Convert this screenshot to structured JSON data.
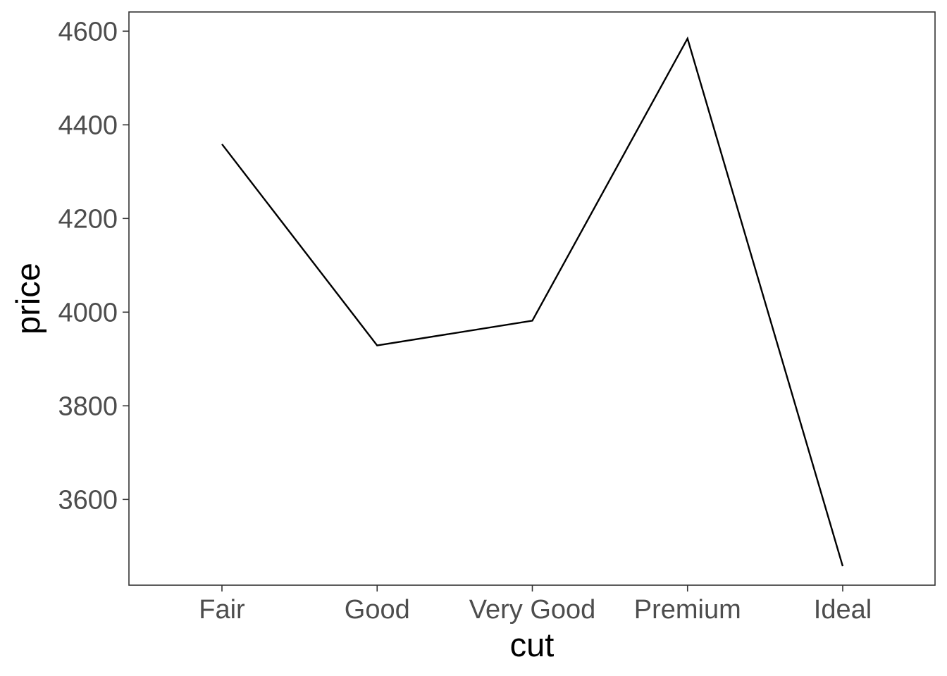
{
  "chart_data": {
    "type": "line",
    "title": "",
    "xlabel": "cut",
    "ylabel": "price",
    "categories": [
      "Fair",
      "Good",
      "Very Good",
      "Premium",
      "Ideal"
    ],
    "series": [
      {
        "values": [
          4358.76,
          3928.86,
          3981.76,
          4584.26,
          3457.54
        ]
      }
    ],
    "ylim": [
      3417,
      4641
    ],
    "yticks": [
      3600,
      3800,
      4000,
      4200,
      4400,
      4600
    ],
    "grid": false,
    "legend": "none",
    "colors": {
      "line": "#000000",
      "panel_border": "#333333",
      "tick_text": "#4d4d4d",
      "axis_title": "#000000",
      "background": "#ffffff"
    }
  }
}
